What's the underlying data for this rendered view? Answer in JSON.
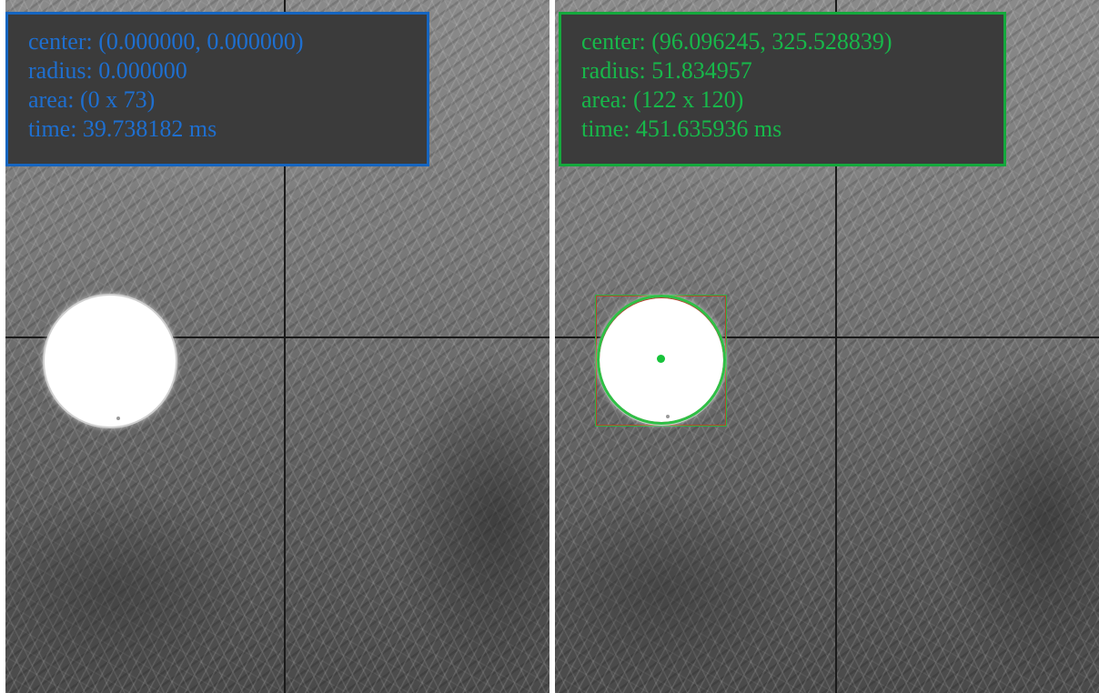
{
  "colors": {
    "left_accent": "#1565c0",
    "right_accent": "#17b84a",
    "info_background": "#3b3b3b",
    "crosshair": "#1a1a1a",
    "detected_circle": "#2fbf46",
    "bounding_box": "#b5462a"
  },
  "left_panel": {
    "center": "center: (0.000000, 0.000000)",
    "radius": "radius: 0.000000",
    "area": "area: (0 x 73)",
    "time": "time: 39.738182 ms"
  },
  "right_panel": {
    "center": "center: (96.096245, 325.528839)",
    "radius": "radius: 51.834957",
    "area": "area: (122 x 120)",
    "time": "time: 451.635936 ms"
  }
}
